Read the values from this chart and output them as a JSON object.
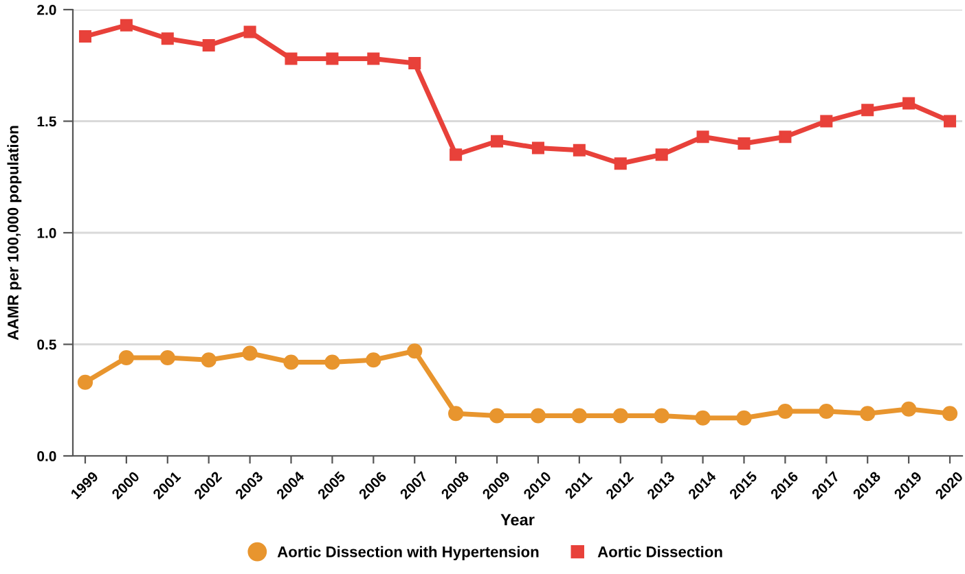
{
  "chart_data": {
    "type": "line",
    "xlabel": "Year",
    "ylabel": "AAMR per 100,000 population",
    "categories": [
      "1999",
      "2000",
      "2001",
      "2002",
      "2003",
      "2004",
      "2005",
      "2006",
      "2007",
      "2008",
      "2009",
      "2010",
      "2011",
      "2012",
      "2013",
      "2014",
      "2015",
      "2016",
      "2017",
      "2018",
      "2019",
      "2020"
    ],
    "series": [
      {
        "name": "Aortic Dissection with Hypertension",
        "color": "#e8952e",
        "marker": "circle",
        "values": [
          0.33,
          0.44,
          0.44,
          0.43,
          0.46,
          0.42,
          0.42,
          0.43,
          0.47,
          0.19,
          0.18,
          0.18,
          0.18,
          0.18,
          0.18,
          0.17,
          0.17,
          0.2,
          0.2,
          0.19,
          0.21,
          0.19
        ]
      },
      {
        "name": "Aortic Dissection",
        "color": "#e8413a",
        "marker": "square",
        "values": [
          1.88,
          1.93,
          1.87,
          1.84,
          1.9,
          1.78,
          1.78,
          1.78,
          1.76,
          1.35,
          1.41,
          1.38,
          1.37,
          1.31,
          1.35,
          1.43,
          1.4,
          1.43,
          1.5,
          1.55,
          1.58,
          1.5
        ]
      }
    ],
    "ylim": [
      0,
      2.0
    ],
    "yticks": [
      {
        "value": 0,
        "label": "0.0"
      },
      {
        "value": 0.5,
        "label": "0.5"
      },
      {
        "value": 1.0,
        "label": "1.0"
      },
      {
        "value": 1.5,
        "label": "1.5"
      },
      {
        "value": 2.0,
        "label": "2.0"
      }
    ],
    "grid": "y",
    "legend": "bottom",
    "line_style": "solid"
  }
}
